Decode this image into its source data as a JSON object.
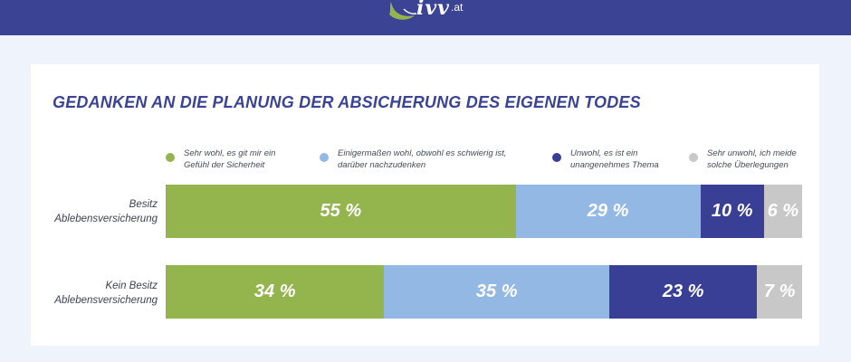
{
  "header": {
    "logo_text": "ivv",
    "logo_suffix": ".at",
    "bar_color": "#3a4394"
  },
  "chart_data": {
    "type": "bar",
    "orientation": "horizontal",
    "stacked": true,
    "title": "GEDANKEN AN DIE PLANUNG DER ABSICHERUNG DES EIGENEN TODES",
    "legend_position": "top",
    "categories": [
      "Besitz Ablebensversicherung",
      "Kein Besitz Ablebensversicherung"
    ],
    "category_lines": [
      [
        "Besitz",
        "Ablebensversicherung"
      ],
      [
        "Kein Besitz",
        "Ablebensversicherung"
      ]
    ],
    "series": [
      {
        "name": "Sehr wohl, es git mir ein Gefühl der Sicherheit",
        "legend_lines": [
          "Sehr wohl, es git mir ein",
          "Gefühl der Sicherheit"
        ],
        "color": "#94b44d",
        "values": [
          55,
          34
        ],
        "labels": [
          "55 %",
          "34 %"
        ]
      },
      {
        "name": "Einigermaßen wohl, obwohl es schwierig ist, darüber nachzudenken",
        "legend_lines": [
          "Einigermaßen wohl, obwohl es schwierig ist,",
          "darüber nachzudenken"
        ],
        "color": "#93b8e3",
        "values": [
          29,
          35
        ],
        "labels": [
          "29 %",
          "35 %"
        ]
      },
      {
        "name": "Unwohl, es ist ein unangenehmes Thema",
        "legend_lines": [
          "Unwohl, es ist ein",
          "unangenehmes Thema"
        ],
        "color": "#383f94",
        "values": [
          10,
          23
        ],
        "labels": [
          "10 %",
          "23 %"
        ]
      },
      {
        "name": "Sehr unwohl, ich meide solche Überlegungen",
        "legend_lines": [
          "Sehr unwohl, ich meide",
          "solche Überlegungen"
        ],
        "color": "#c8c8c8",
        "values": [
          6,
          7
        ],
        "labels": [
          "6 %",
          "7 %"
        ]
      }
    ],
    "xlim": [
      0,
      100
    ],
    "grid": false
  }
}
